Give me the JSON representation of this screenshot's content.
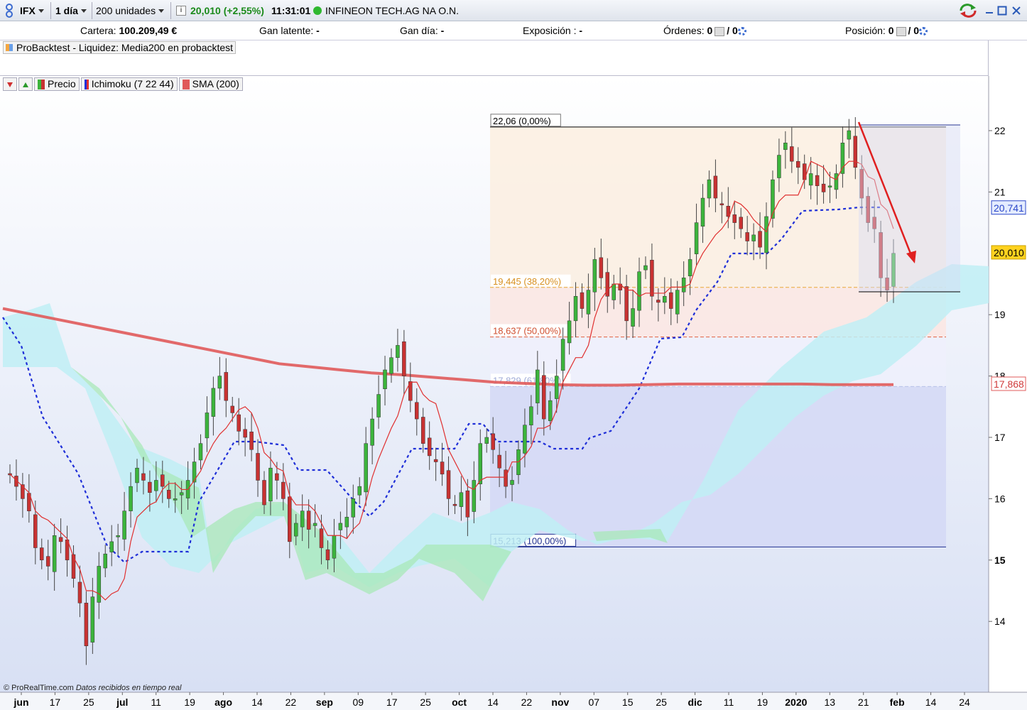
{
  "toolbar": {
    "symbol": "IFX",
    "timeframe": "1 día",
    "quantity": "200 unidades",
    "price": "20,010",
    "change": "(+2,55%)",
    "time": "11:31:01",
    "instrument": "INFINEON TECH.AG NA O.N."
  },
  "account": {
    "cartera_label": "Cartera:",
    "cartera_value": "100.209,49 €",
    "gan_latente_label": "Gan latente:",
    "gan_latente_value": "-",
    "gan_dia_label": "Gan día:",
    "gan_dia_value": "-",
    "exposicion_label": "Exposición :",
    "exposicion_value": "-",
    "ordenes_label": "Órdenes:",
    "ordenes_value": "0",
    "ordenes_value2": "/ 0",
    "posicion_label": "Posición:",
    "posicion_value": "0",
    "posicion_value2": "/ 0"
  },
  "backtest_label": "ProBacktest - Liquidez: Media200 en probacktest",
  "legend": {
    "price": "Precio",
    "ichimoku": "Ichimoku (7 22 44)",
    "sma": "SMA (200)"
  },
  "watermark": {
    "brand": "© ProRealTime.com",
    "note": "Datos recibidos en tiempo real"
  },
  "colors": {
    "up": "#3cb43c",
    "down": "#c83232",
    "sma": "#e05a5a",
    "kijun": "#1f2fd8",
    "tenkan": "#e03030"
  },
  "chart_data": {
    "type": "candlestick",
    "y_ticks": [
      22,
      21,
      19,
      18,
      17,
      16,
      15,
      14
    ],
    "y_ticks_bold": [
      15
    ],
    "x_labels": [
      {
        "t": "jun",
        "bold": true
      },
      {
        "t": "17"
      },
      {
        "t": "25"
      },
      {
        "t": "jul",
        "bold": true
      },
      {
        "t": "11"
      },
      {
        "t": "19"
      },
      {
        "t": "ago",
        "bold": true
      },
      {
        "t": "14"
      },
      {
        "t": "22"
      },
      {
        "t": "sep",
        "bold": true
      },
      {
        "t": "09"
      },
      {
        "t": "17"
      },
      {
        "t": "25"
      },
      {
        "t": "oct",
        "bold": true
      },
      {
        "t": "14"
      },
      {
        "t": "22"
      },
      {
        "t": "nov",
        "bold": true
      },
      {
        "t": "07"
      },
      {
        "t": "15"
      },
      {
        "t": "25"
      },
      {
        "t": "dic",
        "bold": true
      },
      {
        "t": "11"
      },
      {
        "t": "19"
      },
      {
        "t": "2020",
        "bold": true
      },
      {
        "t": "13"
      },
      {
        "t": "21"
      },
      {
        "t": "feb",
        "bold": true
      },
      {
        "t": "14"
      },
      {
        "t": "24"
      }
    ],
    "price_tags": [
      {
        "label": "20,741",
        "value": 20.741,
        "style": "blue"
      },
      {
        "label": "20,010",
        "value": 20.01,
        "style": "yellow"
      },
      {
        "label": "17,868",
        "value": 17.868,
        "style": "red"
      }
    ],
    "fibonacci": [
      {
        "label": "22,06 (0,00%)",
        "value": 22.06
      },
      {
        "label": "19,445 (38,20%)",
        "value": 19.445
      },
      {
        "label": "18,637 (50,00%)",
        "value": 18.637
      },
      {
        "label": "17,829 (61,80%)",
        "value": 17.829
      },
      {
        "label": "15,213 (100,00%)",
        "value": 15.213
      }
    ],
    "closes": [
      16.4,
      16.2,
      16.0,
      15.8,
      15.2,
      15.0,
      14.9,
      15.4,
      15.3,
      15.0,
      14.7,
      14.3,
      13.6,
      14.4,
      14.9,
      15.1,
      15.3,
      15.4,
      15.8,
      16.2,
      16.5,
      16.3,
      16.1,
      16.3,
      16.2,
      16.0,
      16.0,
      16.1,
      16.3,
      16.6,
      16.9,
      17.4,
      17.8,
      18.0,
      17.6,
      17.4,
      17.1,
      17.0,
      16.8,
      16.3,
      15.9,
      16.5,
      16.3,
      16.0,
      15.3,
      15.6,
      15.8,
      15.5,
      15.6,
      15.2,
      15.0,
      15.4,
      15.6,
      15.7,
      16.0,
      16.2,
      16.9,
      17.3,
      17.7,
      18.1,
      18.3,
      18.5,
      18.0,
      17.6,
      17.3,
      16.9,
      16.7,
      16.6,
      16.4,
      16.0,
      15.9,
      16.1,
      15.7,
      16.3,
      16.9,
      17.0,
      16.8,
      16.5,
      16.2,
      16.3,
      16.8,
      17.2,
      17.5,
      18.1,
      17.3,
      17.6,
      18.0,
      18.6,
      18.9,
      19.3,
      19.1,
      19.4,
      19.9,
      19.6,
      19.3,
      19.5,
      19.4,
      18.9,
      19.1,
      19.7,
      19.8,
      19.3,
      19.2,
      19.3,
      19.1,
      19.4,
      19.6,
      19.9,
      20.5,
      20.9,
      21.2,
      20.9,
      20.8,
      20.6,
      20.5,
      20.4,
      20.2,
      20.3,
      20.1,
      20.6,
      21.2,
      21.6,
      21.8,
      21.5,
      21.4,
      21.2,
      21.3,
      21.1,
      21.0,
      21.1,
      21.3,
      21.8,
      22.0,
      21.4,
      20.9,
      20.5,
      20.4,
      19.6,
      19.4,
      20.0
    ],
    "sma200": [
      19.1,
      19.0,
      18.9,
      18.8,
      18.7,
      18.6,
      18.5,
      18.4,
      18.3,
      18.2,
      18.15,
      18.1,
      18.05,
      18.02,
      17.98,
      17.94,
      17.9,
      17.88,
      17.86,
      17.85,
      17.85,
      17.86,
      17.87,
      17.87,
      17.87,
      17.87,
      17.87,
      17.86,
      17.86,
      17.86
    ]
  }
}
